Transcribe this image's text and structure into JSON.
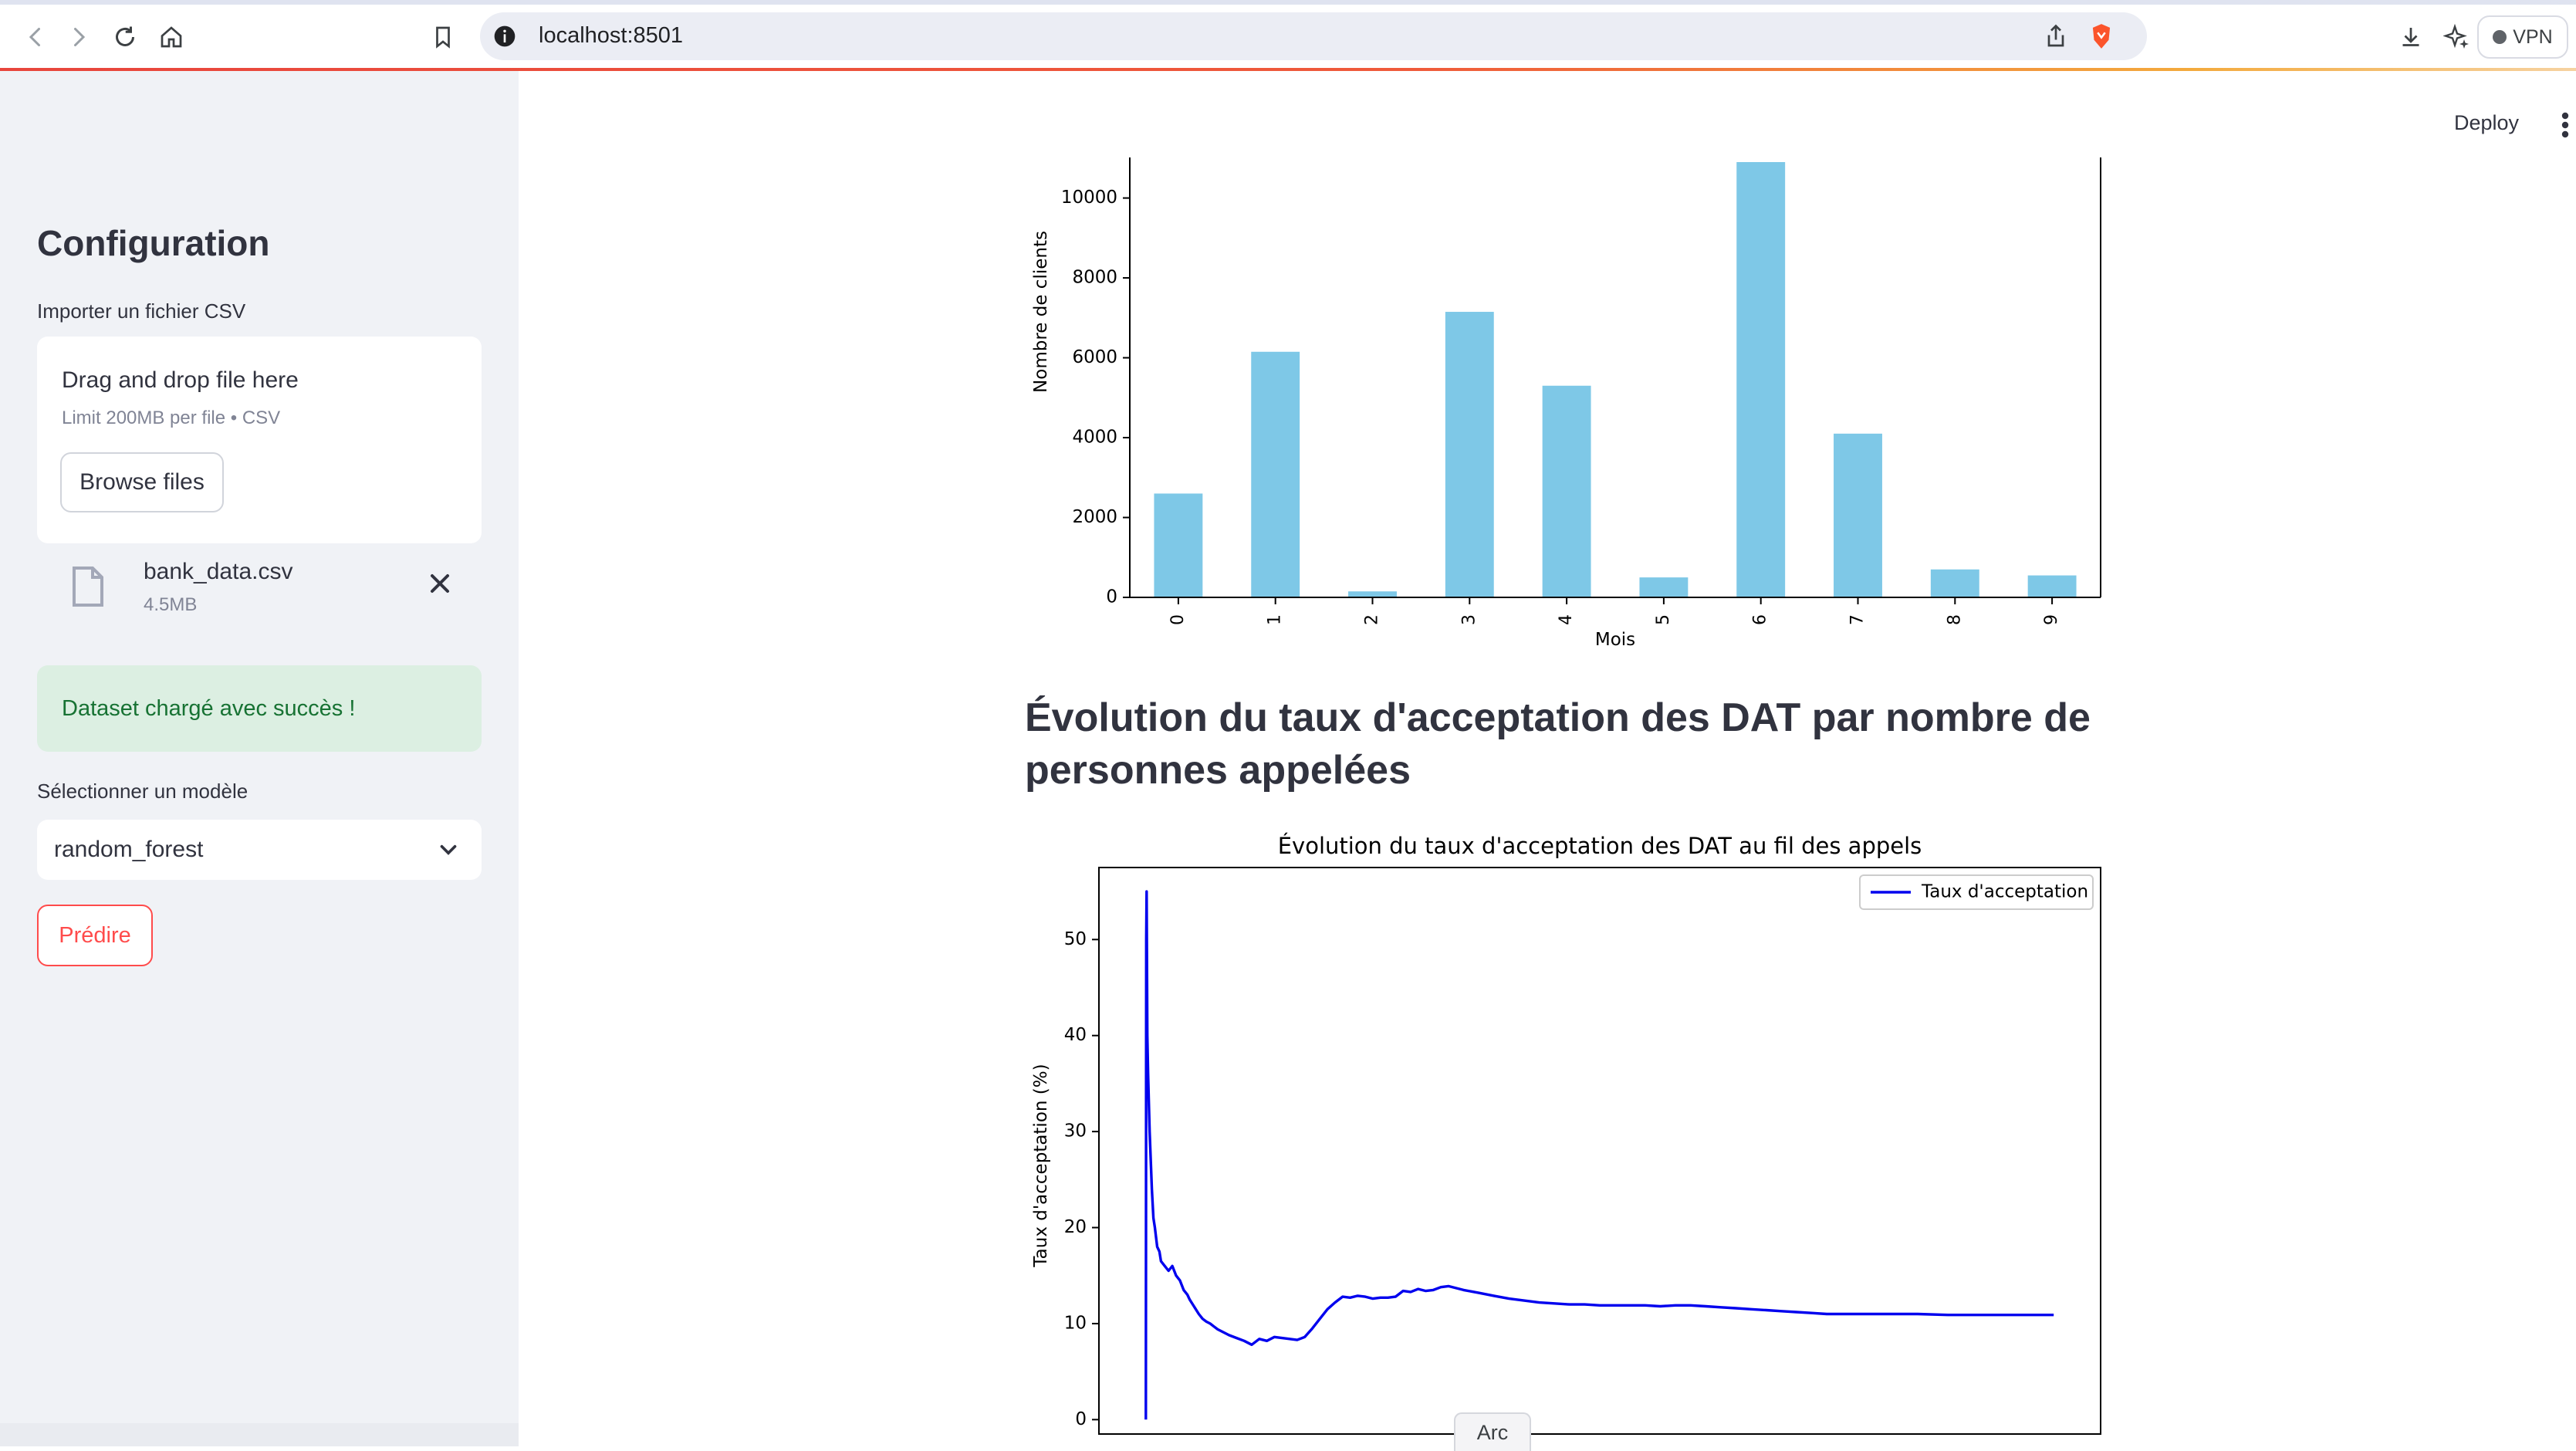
{
  "browser": {
    "url": "localhost:8501",
    "vpn_label": "VPN"
  },
  "sidebar": {
    "title": "Configuration",
    "upload_label": "Importer un fichier CSV",
    "dropzone_title": "Drag and drop file here",
    "dropzone_limit": "Limit 200MB per file • CSV",
    "browse_label": "Browse files",
    "file_name": "bank_data.csv",
    "file_size": "4.5MB",
    "success_message": "Dataset chargé avec succès !",
    "model_label": "Sélectionner un modèle",
    "model_value": "random_forest",
    "predict_label": "Prédire"
  },
  "header": {
    "deploy_label": "Deploy"
  },
  "main": {
    "section_heading": "Évolution du taux d'acceptation des DAT par nombre de personnes appelées"
  },
  "taskbar": {
    "arc_label": "Arc"
  },
  "colors": {
    "bar": "#7ec8e7",
    "line": "#0000ee",
    "accent": "#ff4b4b",
    "success_bg": "#dcefe2",
    "success_text": "#177233"
  },
  "chart_data": [
    {
      "type": "bar",
      "title": "",
      "xlabel": "Mois",
      "ylabel": "Nombre de clients",
      "categories": [
        "0",
        "1",
        "2",
        "3",
        "4",
        "5",
        "6",
        "7",
        "8",
        "9"
      ],
      "values": [
        2600,
        6150,
        150,
        7150,
        5300,
        500,
        10900,
        4100,
        700,
        550
      ],
      "y_ticks": [
        0,
        2000,
        4000,
        6000,
        8000,
        10000
      ],
      "ylim": [
        0,
        10900
      ],
      "grid": false
    },
    {
      "type": "line",
      "title": "Évolution du taux d'acceptation des DAT au fil des appels",
      "xlabel": "",
      "ylabel": "Taux d'acceptation (%)",
      "y_ticks": [
        0,
        10,
        20,
        30,
        40,
        50
      ],
      "legend": "top-right",
      "grid": false,
      "series": [
        {
          "name": "Taux d'acceptation",
          "x": [
            0,
            0.5,
            1,
            2,
            3,
            5,
            8,
            10,
            12,
            15,
            18,
            20,
            25,
            30,
            35,
            40,
            45,
            50,
            55,
            58,
            62,
            66,
            70,
            75,
            80,
            85,
            90,
            95,
            100,
            110,
            120,
            130,
            140,
            150,
            160,
            170,
            180,
            190,
            200,
            210,
            220,
            230,
            240,
            250,
            260,
            270,
            280,
            290,
            300,
            310,
            320,
            330,
            340,
            350,
            360,
            370,
            380,
            390,
            400,
            420,
            440,
            460,
            480,
            500,
            520,
            540,
            560,
            580,
            600,
            620,
            640,
            660,
            680,
            700,
            720,
            740,
            760,
            780,
            800,
            820,
            840,
            860,
            880,
            900,
            940,
            980,
            1020,
            1060,
            1100,
            1140,
            1180,
            1200
          ],
          "values": [
            0,
            50,
            55,
            40,
            36,
            30,
            24,
            21,
            20,
            18,
            17.5,
            16.5,
            16,
            15.5,
            16,
            15,
            14.5,
            13.5,
            13,
            12.5,
            12,
            11.5,
            11,
            10.5,
            10.2,
            10,
            9.7,
            9.4,
            9.2,
            8.8,
            8.5,
            8.2,
            7.8,
            8.4,
            8.2,
            8.6,
            8.5,
            8.4,
            8.3,
            8.6,
            9.5,
            10.5,
            11.5,
            12.2,
            12.8,
            12.7,
            12.9,
            12.8,
            12.6,
            12.7,
            12.7,
            12.8,
            13.4,
            13.3,
            13.6,
            13.4,
            13.5,
            13.8,
            13.9,
            13.5,
            13.2,
            12.9,
            12.6,
            12.4,
            12.2,
            12.1,
            12.0,
            12.0,
            11.9,
            11.9,
            11.9,
            11.9,
            11.8,
            11.9,
            11.9,
            11.8,
            11.7,
            11.6,
            11.5,
            11.4,
            11.3,
            11.2,
            11.1,
            11.0,
            11.0,
            11.0,
            11.0,
            10.9,
            10.9,
            10.9,
            10.9,
            10.9
          ]
        }
      ]
    }
  ]
}
